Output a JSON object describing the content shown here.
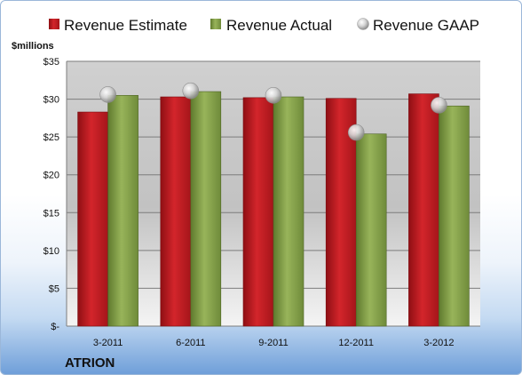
{
  "chart_data": {
    "type": "bar",
    "unit_label": "$millions",
    "company": "ATRION",
    "categories": [
      "3-2011",
      "6-2011",
      "9-2011",
      "12-2011",
      "3-2012"
    ],
    "series": [
      {
        "name": "Revenue Estimate",
        "kind": "bar",
        "color": "#cc1f25",
        "values": [
          28.3,
          30.3,
          30.2,
          30.1,
          30.7
        ]
      },
      {
        "name": "Revenue Actual",
        "kind": "bar",
        "color": "#8aa64b",
        "values": [
          30.5,
          31.0,
          30.3,
          25.4,
          29.1
        ]
      },
      {
        "name": "Revenue GAAP",
        "kind": "marker",
        "color": "#b4b4b4",
        "values": [
          30.6,
          31.1,
          30.5,
          25.6,
          29.2
        ]
      }
    ],
    "ylim": [
      0,
      35
    ],
    "yticks": [
      0,
      5,
      10,
      15,
      20,
      25,
      30,
      35
    ],
    "ytick_labels": [
      "$-",
      "$5",
      "$10",
      "$15",
      "$20",
      "$25",
      "$30",
      "$35"
    ],
    "grid": true,
    "legend_position": "top"
  }
}
